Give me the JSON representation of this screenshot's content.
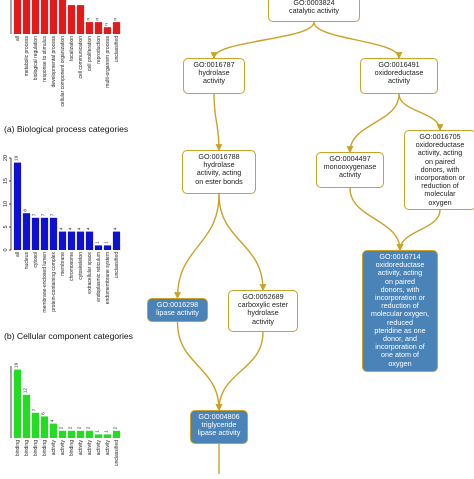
{
  "captions": {
    "a": "(a) Biological process categories",
    "b": "(b) Cellular component categories"
  },
  "colors": {
    "bp_bar": "#e31a1c",
    "cc_bar": "#1010d0",
    "mf_bar": "#22dd22",
    "edge": "#c9a227",
    "highlight_node": "#4a83b8"
  },
  "chart_data": [
    {
      "type": "bar",
      "title": "",
      "categories": [
        "all",
        "metabolic process",
        "biological regulation",
        "response to stimulus",
        "developmental process",
        "cellular component organization",
        "localization",
        "cell communication",
        "cell proliferation",
        "reproduction",
        "multi-organism process",
        "unclassified"
      ],
      "values": [
        20,
        20,
        20,
        20,
        20,
        20,
        17,
        17,
        7,
        7,
        4,
        7
      ],
      "value_labels": [
        "",
        "",
        "",
        "",
        "",
        "",
        "",
        "",
        "n",
        "n",
        "n",
        "n"
      ],
      "ylim": [
        0,
        20
      ],
      "yticks": []
    },
    {
      "type": "bar",
      "title": "",
      "categories": [
        "all",
        "nucleus",
        "cytosol",
        "membrane-enclosed lumen",
        "protein-containing complex",
        "membrane",
        "chromosome",
        "cytoskeleton",
        "extracellular space",
        "endoplasmic reticulum",
        "endomembrane system",
        "unclassified"
      ],
      "values": [
        19,
        8,
        7,
        7,
        7,
        4,
        4,
        4,
        4,
        1,
        1,
        4
      ],
      "value_labels": [
        "19",
        "8",
        "7",
        "7",
        "7",
        "4",
        "4",
        "4",
        "4",
        "1",
        "1",
        "4"
      ],
      "ylim": [
        0,
        20
      ],
      "yticks": [
        0,
        5,
        10,
        15,
        20
      ]
    },
    {
      "type": "bar",
      "title": "",
      "categories": [
        "binding",
        "binding",
        "binding",
        "binding",
        "activity",
        "activity",
        "binding",
        "activity",
        "activity",
        "activity",
        "activity",
        "unclassified"
      ],
      "values": [
        19,
        12,
        7,
        6,
        4,
        2,
        2,
        2,
        2,
        1,
        1,
        2
      ],
      "value_labels": [
        "19",
        "12",
        "7",
        "6",
        "4",
        "2",
        "2",
        "2",
        "2",
        "1",
        "1",
        "2"
      ],
      "ylim": [
        0,
        20
      ],
      "yticks": []
    }
  ],
  "graph": {
    "nodes": [
      {
        "id": "n3824",
        "lines": [
          "GO:0003824",
          "catalytic activity"
        ],
        "highlight": false
      },
      {
        "id": "n16787",
        "lines": [
          "GO:0016787",
          "hydrolase",
          "activity"
        ],
        "highlight": false
      },
      {
        "id": "n16491",
        "lines": [
          "GO:0016491",
          "oxidoreductase",
          "activity"
        ],
        "highlight": false
      },
      {
        "id": "n16788",
        "lines": [
          "GO:0016788",
          "hydrolase",
          "activity, acting",
          "on ester bonds"
        ],
        "highlight": false
      },
      {
        "id": "n4497",
        "lines": [
          "GO:0004497",
          "monooxygenase",
          "activity"
        ],
        "highlight": false
      },
      {
        "id": "n16705",
        "lines": [
          "GO:0016705",
          "oxidoreductase",
          "activity, acting",
          "on paired",
          "donors, with",
          "incorporation or",
          "reduction of",
          "molecular",
          "oxygen"
        ],
        "highlight": false
      },
      {
        "id": "n16298",
        "lines": [
          "GO:0016298",
          "lipase activity"
        ],
        "highlight": true
      },
      {
        "id": "n52689",
        "lines": [
          "GO:0052689",
          "carboxylic ester",
          "hydrolase",
          "activity"
        ],
        "highlight": false
      },
      {
        "id": "n16714",
        "lines": [
          "GO:0016714",
          "oxidoreductase",
          "activity, acting",
          "on paired",
          "donors, with",
          "incorporation or",
          "reduction of",
          "molecular oxygen,",
          "reduced",
          "pteridine as one",
          "donor, and",
          "incorporation of",
          "one atom of",
          "oxygen"
        ],
        "highlight": true
      },
      {
        "id": "n4806",
        "lines": [
          "GO:0004806",
          "triglyceride",
          "lipase activity"
        ],
        "highlight": true
      }
    ],
    "edges": [
      [
        "n3824",
        "n16787"
      ],
      [
        "n3824",
        "n16491"
      ],
      [
        "n16787",
        "n16788"
      ],
      [
        "n16491",
        "n4497"
      ],
      [
        "n16491",
        "n16705"
      ],
      [
        "n16788",
        "n16298"
      ],
      [
        "n16788",
        "n52689"
      ],
      [
        "n4497",
        "n16714"
      ],
      [
        "n16705",
        "n16714"
      ],
      [
        "n52689",
        "n4806"
      ],
      [
        "n16298",
        "n4806"
      ]
    ]
  }
}
